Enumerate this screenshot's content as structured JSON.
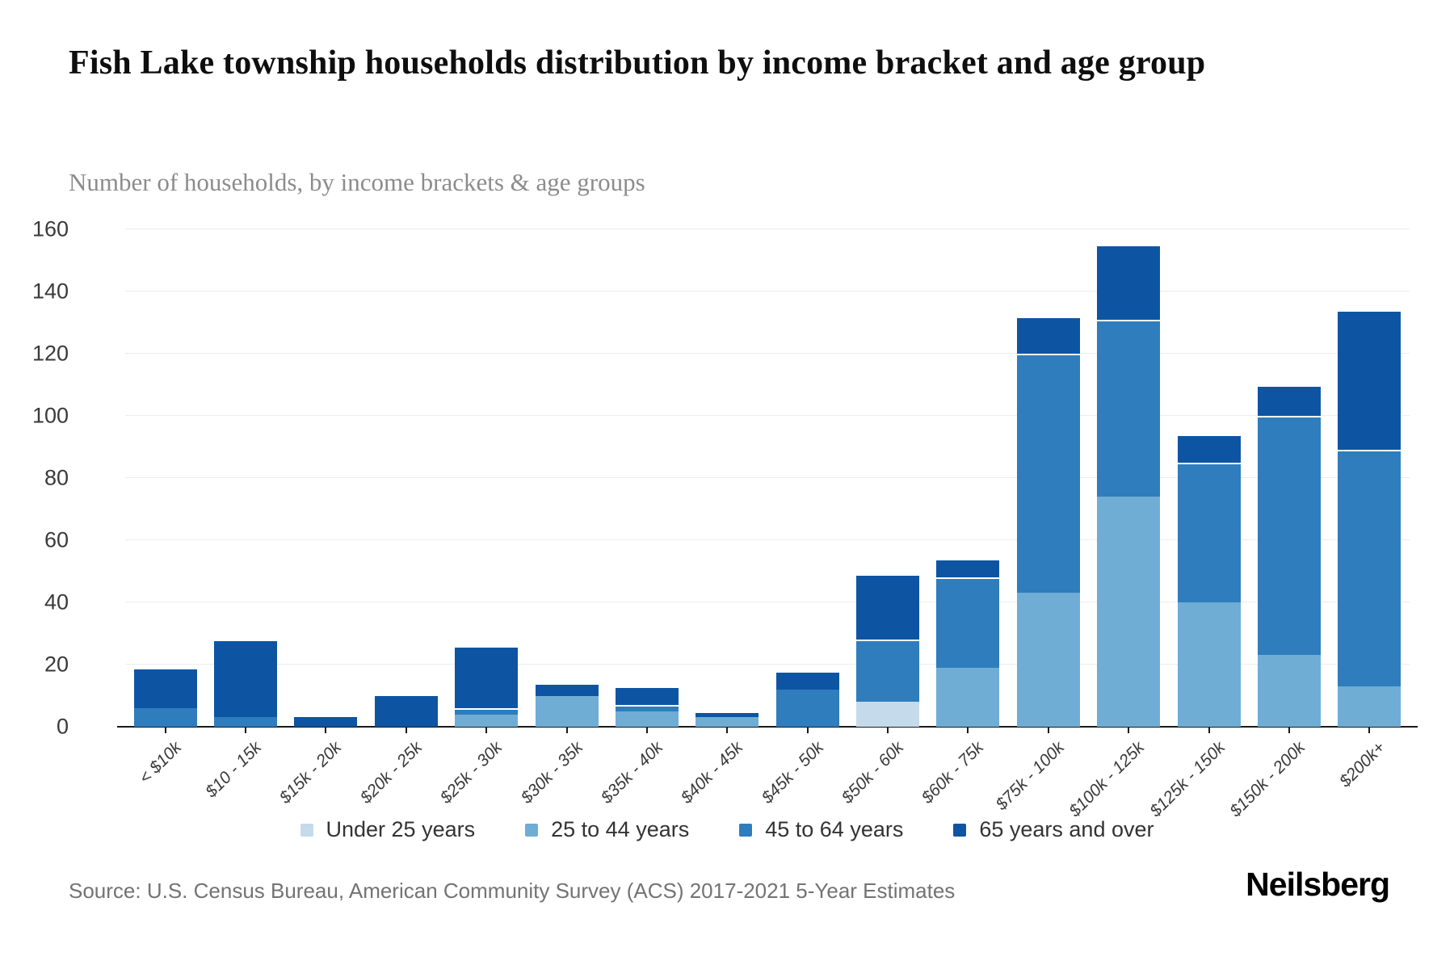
{
  "header": {
    "title": "Fish Lake township households distribution by income bracket and age group",
    "subtitle": "Number of households, by income brackets & age groups"
  },
  "chart_data": {
    "type": "bar",
    "stacked": true,
    "title": "Fish Lake township households distribution by income bracket and age group",
    "subtitle": "Number of households, by income brackets & age groups",
    "xlabel": "",
    "ylabel": "Number of households",
    "ylim": [
      0,
      160
    ],
    "ytick_step": 20,
    "yticks": [
      0,
      20,
      40,
      60,
      80,
      100,
      120,
      140,
      160
    ],
    "grid": true,
    "legend_position": "bottom",
    "categories": [
      "< $10k",
      "$10 - 15k",
      "$15k - 20k",
      "$20k - 25k",
      "$25k - 30k",
      "$30k - 35k",
      "$35k - 40k",
      "$40k - 45k",
      "$45k - 50k",
      "$50k - 60k",
      "$60k - 75k",
      "$75k - 100k",
      "$100k - 125k",
      "$125k - 150k",
      "$150k - 200k",
      "$200k+"
    ],
    "series": [
      {
        "name": "Under 25 years",
        "color": "#c5dbeb",
        "values": [
          0,
          0,
          0,
          0,
          0,
          0,
          0,
          0,
          0,
          8,
          0,
          0,
          0,
          0,
          0,
          0
        ]
      },
      {
        "name": "25 to 44 years",
        "color": "#6fadd5",
        "values": [
          0,
          0,
          0,
          0,
          4,
          10,
          5,
          3,
          0,
          0,
          19,
          43,
          74,
          40,
          23,
          13
        ]
      },
      {
        "name": "45 to 64 years",
        "color": "#2f7dbc",
        "values": [
          6,
          3,
          0,
          0,
          2,
          0,
          2,
          0,
          12,
          20,
          29,
          77,
          57,
          45,
          77,
          76
        ]
      },
      {
        "name": "65 years and over",
        "color": "#0d55a3",
        "values": [
          13,
          25,
          3,
          10,
          20,
          4,
          6,
          2,
          6,
          21,
          6,
          12,
          24,
          9,
          10,
          45
        ]
      }
    ],
    "totals": [
      19,
      28,
      3,
      10,
      26,
      14,
      13,
      5,
      18,
      49,
      54,
      132,
      155,
      94,
      110,
      134
    ]
  },
  "footer": {
    "source": "Source: U.S. Census Bureau, American Community Survey (ACS) 2017-2021 5-Year Estimates",
    "brand": "Neilsberg"
  }
}
